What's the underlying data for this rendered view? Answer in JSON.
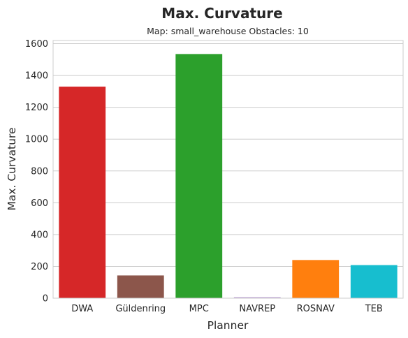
{
  "chart_data": {
    "type": "bar",
    "title": "Max. Curvature",
    "subtitle": "Map: small_warehouse Obstacles: 10",
    "xlabel": "Planner",
    "ylabel": "Max. Curvature",
    "categories": [
      "DWA",
      "Güldenring",
      "MPC",
      "NAVREP",
      "ROSNAV",
      "TEB"
    ],
    "values": [
      1330,
      143,
      1535,
      5,
      240,
      208
    ],
    "colors": [
      "#d62728",
      "#8c564b",
      "#2ca02c",
      "#9467bd",
      "#ff7f0e",
      "#17becf"
    ],
    "ylim": [
      0,
      1620
    ],
    "yticks": [
      0,
      200,
      400,
      600,
      800,
      1000,
      1200,
      1400,
      1600
    ],
    "grid": "horizontal",
    "legend": "none"
  }
}
